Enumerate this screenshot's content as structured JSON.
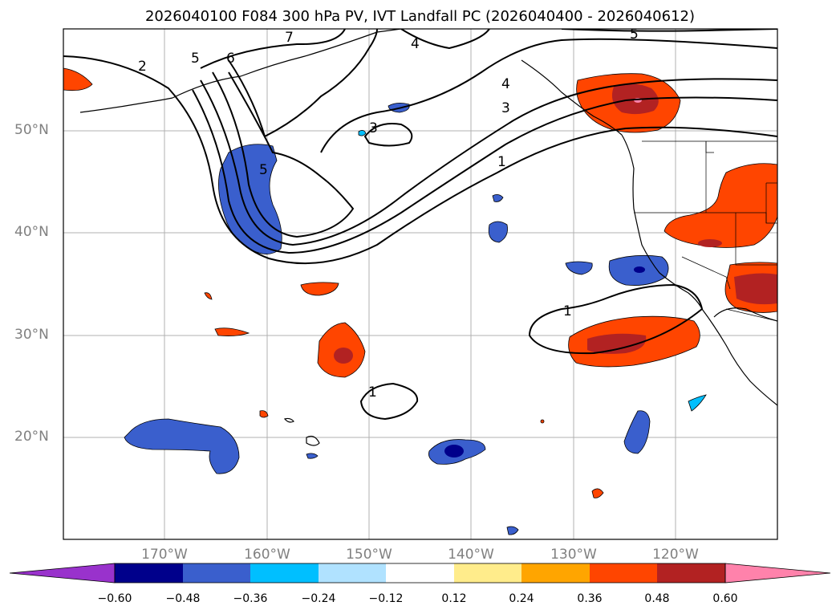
{
  "title": "2026040100 F084 300 hPa PV, IVT Landfall PC (2026040400 - 2026040612)",
  "map": {
    "lat_labels": [
      "50°N",
      "40°N",
      "30°N",
      "20°N"
    ],
    "lon_labels": [
      "170°W",
      "160°W",
      "150°W",
      "140°W",
      "130°W",
      "120°W"
    ],
    "contour_labels": [
      "2",
      "5",
      "6",
      "7",
      "4",
      "5",
      "4",
      "3",
      "3",
      "5",
      "1",
      "1",
      "1"
    ]
  },
  "colorbar": {
    "ticks": [
      "−0.60",
      "−0.48",
      "−0.36",
      "−0.24",
      "−0.12",
      "0.12",
      "0.24",
      "0.36",
      "0.48",
      "0.60"
    ],
    "colors": [
      "#9932cc",
      "#00008b",
      "#3a5fcd",
      "#00bfff",
      "#b0e2ff",
      "#ffffff",
      "#ffec8b",
      "#ffa500",
      "#ff4500",
      "#b22222",
      "#ff82ab"
    ]
  },
  "palette": {
    "neg_extreme": "#00008b",
    "neg_strong": "#3a5fcd",
    "neg_mid": "#00bfff",
    "pos_mid": "#ffec8b",
    "pos_strong": "#ff4500",
    "pos_core": "#b22222",
    "pos_extreme": "#ff82ab"
  }
}
